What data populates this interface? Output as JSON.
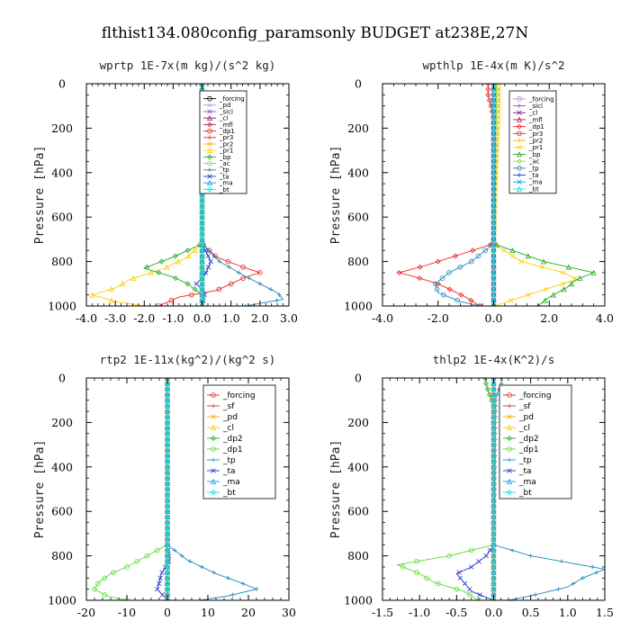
{
  "title": "flthist134.080config_paramsonly  BUDGET at238E,27N",
  "chart_data": [
    {
      "type": "line",
      "title": "wprtp  1E-7x(m kg)/(s^2 kg)",
      "ylabel": "Pressure [hPa]",
      "xlim": [
        -4.0,
        3.0
      ],
      "ylim": [
        1000,
        0
      ],
      "xticks": [
        "-4.0",
        "-3.0",
        "-2.0",
        "-1.0",
        "0.0",
        "1.0",
        "2.0",
        "3.0"
      ],
      "yticks": [
        "0",
        "200",
        "400",
        "600",
        "800",
        "1000"
      ],
      "legend_position": "top-right",
      "series": [
        {
          "name": "_forcing",
          "color": "#000000",
          "p": [
            0,
            1000
          ],
          "x": [
            0,
            0
          ]
        },
        {
          "name": "_pd",
          "color": "#aa88dd",
          "p": [
            0,
            1000
          ],
          "x": [
            0,
            0
          ]
        },
        {
          "name": "_sicl",
          "color": "#7755cc",
          "p": [
            0,
            1000
          ],
          "x": [
            0,
            0
          ]
        },
        {
          "name": "_cl",
          "color": "#7a1f6f",
          "p": [
            0,
            1000
          ],
          "x": [
            0,
            0
          ]
        },
        {
          "name": "_mfl",
          "color": "#aa2255",
          "p": [
            0,
            1000
          ],
          "x": [
            0,
            0
          ]
        },
        {
          "name": "_dp1",
          "color": "#ee2222",
          "p": [
            720,
            780,
            820,
            850,
            870,
            900,
            930,
            960,
            1000
          ],
          "x": [
            0,
            0.5,
            1.3,
            2.0,
            1.5,
            1.0,
            0.5,
            -0.8,
            -1.5
          ]
        },
        {
          "name": "_pr3",
          "color": "#dd3333",
          "p": [
            0,
            1000
          ],
          "x": [
            0,
            0
          ]
        },
        {
          "name": "_pr2",
          "color": "#ffaa00",
          "p": [
            0,
            1000
          ],
          "x": [
            0,
            0
          ]
        },
        {
          "name": "_pr1",
          "color": "#ffcc00",
          "p": [
            720,
            780,
            830,
            860,
            880,
            920,
            950,
            980,
            1000
          ],
          "x": [
            0,
            -0.5,
            -1.3,
            -2.0,
            -2.5,
            -3.0,
            -3.8,
            -3.0,
            -2.0
          ]
        },
        {
          "name": "_bp",
          "color": "#22aa22",
          "p": [
            720,
            780,
            830,
            850,
            870,
            900,
            950,
            1000
          ],
          "x": [
            0,
            -1.0,
            -2.0,
            -1.5,
            -1.0,
            -0.5,
            0,
            0
          ]
        },
        {
          "name": "_ac",
          "color": "#88dd44",
          "p": [
            0,
            1000
          ],
          "x": [
            0,
            0
          ]
        },
        {
          "name": "_tp",
          "color": "#2288bb",
          "p": [
            720,
            800,
            860,
            900,
            940,
            970,
            1000
          ],
          "x": [
            0,
            0.6,
            1.4,
            2.0,
            2.6,
            2.8,
            1.5
          ]
        },
        {
          "name": "_ta",
          "color": "#2233cc",
          "p": [
            720,
            800,
            860,
            900,
            940,
            1000
          ],
          "x": [
            0,
            0.3,
            0.1,
            -0.2,
            0.1,
            0
          ]
        },
        {
          "name": "_ma",
          "color": "#1199ee",
          "p": [
            0,
            1000
          ],
          "x": [
            0,
            0
          ]
        },
        {
          "name": "_bt",
          "color": "#00e5e5",
          "p": [
            0,
            1000
          ],
          "x": [
            0,
            0
          ]
        }
      ]
    },
    {
      "type": "line",
      "title": "wpthlp  1E-4x(m K)/s^2",
      "ylabel": "Pressure [hPa]",
      "xlim": [
        -4.0,
        4.0
      ],
      "ylim": [
        1000,
        0
      ],
      "xticks": [
        "-4.0",
        "-2.0",
        "0.0",
        "2.0",
        "4.0"
      ],
      "yticks": [
        "0",
        "200",
        "400",
        "600",
        "800",
        "1000"
      ],
      "legend_position": "top-right",
      "series": [
        {
          "name": "_forcing",
          "color": "#bb88cc",
          "p": [
            0,
            1000
          ],
          "x": [
            0,
            0
          ]
        },
        {
          "name": "_sicl",
          "color": "#7755cc",
          "p": [
            0,
            1000
          ],
          "x": [
            0,
            0
          ]
        },
        {
          "name": "_cl",
          "color": "#7a1f6f",
          "p": [
            0,
            1000
          ],
          "x": [
            0,
            0
          ]
        },
        {
          "name": "_mfl",
          "color": "#aa2255",
          "p": [
            0,
            1000
          ],
          "x": [
            0,
            0
          ]
        },
        {
          "name": "_dp1",
          "color": "#ee2222",
          "p": [
            0,
            50,
            100,
            150,
            720,
            780,
            820,
            850,
            870,
            900,
            930,
            960,
            1000
          ],
          "x": [
            -0.2,
            -0.2,
            -0.1,
            0,
            0,
            -1.5,
            -2.5,
            -3.4,
            -2.8,
            -2.0,
            -1.5,
            -1.0,
            -0.5
          ]
        },
        {
          "name": "_pr3",
          "color": "#dd3333",
          "p": [
            0,
            1000
          ],
          "x": [
            0,
            0
          ]
        },
        {
          "name": "_pr2",
          "color": "#ffaa00",
          "p": [
            0,
            1000
          ],
          "x": [
            0,
            0
          ]
        },
        {
          "name": "_pr1",
          "color": "#ffcc00",
          "p": [
            0,
            100,
            720,
            800,
            850,
            880,
            920,
            960,
            1000
          ],
          "x": [
            0.2,
            0.2,
            0,
            1.0,
            2.5,
            3.0,
            2.0,
            1.0,
            0
          ]
        },
        {
          "name": "_bp",
          "color": "#22aa22",
          "p": [
            720,
            800,
            850,
            880,
            920,
            960,
            1000
          ],
          "x": [
            0,
            1.8,
            3.6,
            3.0,
            2.6,
            2.0,
            1.6
          ]
        },
        {
          "name": "_ac",
          "color": "#88dd44",
          "p": [
            0,
            100,
            720,
            1000
          ],
          "x": [
            0.1,
            0.1,
            0,
            0
          ]
        },
        {
          "name": "_tp",
          "color": "#2288bb",
          "p": [
            720,
            800,
            850,
            900,
            940,
            980,
            1000
          ],
          "x": [
            0,
            -0.8,
            -1.6,
            -2.1,
            -2.0,
            -1.2,
            -0.5
          ]
        },
        {
          "name": "_ta",
          "color": "#2233cc",
          "p": [
            0,
            1000
          ],
          "x": [
            0,
            0
          ]
        },
        {
          "name": "_ma",
          "color": "#1199ee",
          "p": [
            0,
            1000
          ],
          "x": [
            0,
            0
          ]
        },
        {
          "name": "_bt",
          "color": "#00e5e5",
          "p": [
            0,
            1000
          ],
          "x": [
            0,
            0
          ]
        }
      ]
    },
    {
      "type": "line",
      "title": "rtp2  1E-11x(kg^2)/(kg^2 s)",
      "ylabel": "Pressure [hPa]",
      "xlim": [
        -20,
        30
      ],
      "ylim": [
        1000,
        0
      ],
      "xticks": [
        "-20",
        "-10",
        "0",
        "10",
        "20",
        "30"
      ],
      "yticks": [
        "0",
        "200",
        "400",
        "600",
        "800",
        "1000"
      ],
      "legend_position": "top-right",
      "series": [
        {
          "name": "_forcing",
          "color": "#ee2222",
          "p": [
            0,
            1000
          ],
          "x": [
            0,
            0
          ]
        },
        {
          "name": "_sf",
          "color": "#dd3333",
          "p": [
            0,
            1000
          ],
          "x": [
            0,
            0
          ]
        },
        {
          "name": "_pd",
          "color": "#ffaa00",
          "p": [
            0,
            1000
          ],
          "x": [
            0,
            0
          ]
        },
        {
          "name": "_cl",
          "color": "#ffcc00",
          "p": [
            0,
            1000
          ],
          "x": [
            0,
            0
          ]
        },
        {
          "name": "_dp2",
          "color": "#22aa22",
          "p": [
            0,
            1000
          ],
          "x": [
            0,
            0
          ]
        },
        {
          "name": "_dp1",
          "color": "#55dd33",
          "p": [
            750,
            800,
            850,
            880,
            920,
            950,
            980,
            1000
          ],
          "x": [
            0,
            -5,
            -10,
            -14,
            -17,
            -18,
            -15,
            -10
          ]
        },
        {
          "name": "_tp",
          "color": "#2288bb",
          "p": [
            750,
            820,
            880,
            920,
            950,
            980,
            1000
          ],
          "x": [
            0,
            5,
            12,
            18,
            22,
            15,
            8
          ]
        },
        {
          "name": "_ta",
          "color": "#2233cc",
          "p": [
            750,
            820,
            880,
            920,
            950,
            1000
          ],
          "x": [
            0,
            0.5,
            -1.5,
            -2.0,
            -2.5,
            0
          ]
        },
        {
          "name": "_ma",
          "color": "#1199ee",
          "p": [
            0,
            1000
          ],
          "x": [
            0,
            0
          ]
        },
        {
          "name": "_bt",
          "color": "#00e5e5",
          "p": [
            0,
            1000
          ],
          "x": [
            0,
            0
          ]
        }
      ]
    },
    {
      "type": "line",
      "title": "thlp2  1E-4x(K^2)/s",
      "ylabel": "Pressure [hPa]",
      "xlim": [
        -1.5,
        1.5
      ],
      "ylim": [
        1000,
        0
      ],
      "xticks": [
        "-1.5",
        "-1.0",
        "-0.5",
        "0.0",
        "0.5",
        "1.0",
        "1.5"
      ],
      "yticks": [
        "0",
        "200",
        "400",
        "600",
        "800",
        "1000"
      ],
      "legend_position": "top-right",
      "series": [
        {
          "name": "_forcing",
          "color": "#ee2222",
          "p": [
            0,
            1000
          ],
          "x": [
            0,
            0
          ]
        },
        {
          "name": "_sf",
          "color": "#dd3333",
          "p": [
            0,
            1000
          ],
          "x": [
            0,
            0
          ]
        },
        {
          "name": "_pd",
          "color": "#ffaa00",
          "p": [
            0,
            1000
          ],
          "x": [
            0,
            0
          ]
        },
        {
          "name": "_cl",
          "color": "#ffcc00",
          "p": [
            0,
            1000
          ],
          "x": [
            0,
            0
          ]
        },
        {
          "name": "_dp2",
          "color": "#22aa22",
          "p": [
            0,
            30,
            60,
            90,
            120,
            750,
            1000
          ],
          "x": [
            -0.12,
            -0.1,
            -0.07,
            -0.04,
            0,
            0,
            0
          ]
        },
        {
          "name": "_dp1",
          "color": "#55dd33",
          "p": [
            750,
            800,
            840,
            880,
            920,
            960,
            1000
          ],
          "x": [
            0,
            -0.6,
            -1.3,
            -1.0,
            -0.8,
            -0.4,
            -0.2
          ]
        },
        {
          "name": "_tp",
          "color": "#2288bb",
          "p": [
            0,
            30,
            60,
            90,
            750,
            800,
            860,
            900,
            940,
            980,
            1000
          ],
          "x": [
            0.12,
            0.1,
            0.06,
            0.03,
            0,
            0.5,
            1.5,
            1.2,
            1.0,
            0.5,
            0.2
          ]
        },
        {
          "name": "_ta",
          "color": "#2233cc",
          "p": [
            750,
            800,
            850,
            880,
            920,
            960,
            1000
          ],
          "x": [
            0,
            -0.1,
            -0.3,
            -0.5,
            -0.4,
            -0.3,
            0
          ]
        },
        {
          "name": "_ma",
          "color": "#1199ee",
          "p": [
            0,
            1000
          ],
          "x": [
            0,
            0
          ]
        },
        {
          "name": "_bt",
          "color": "#00e5e5",
          "p": [
            0,
            1000
          ],
          "x": [
            0,
            0
          ]
        }
      ]
    }
  ]
}
